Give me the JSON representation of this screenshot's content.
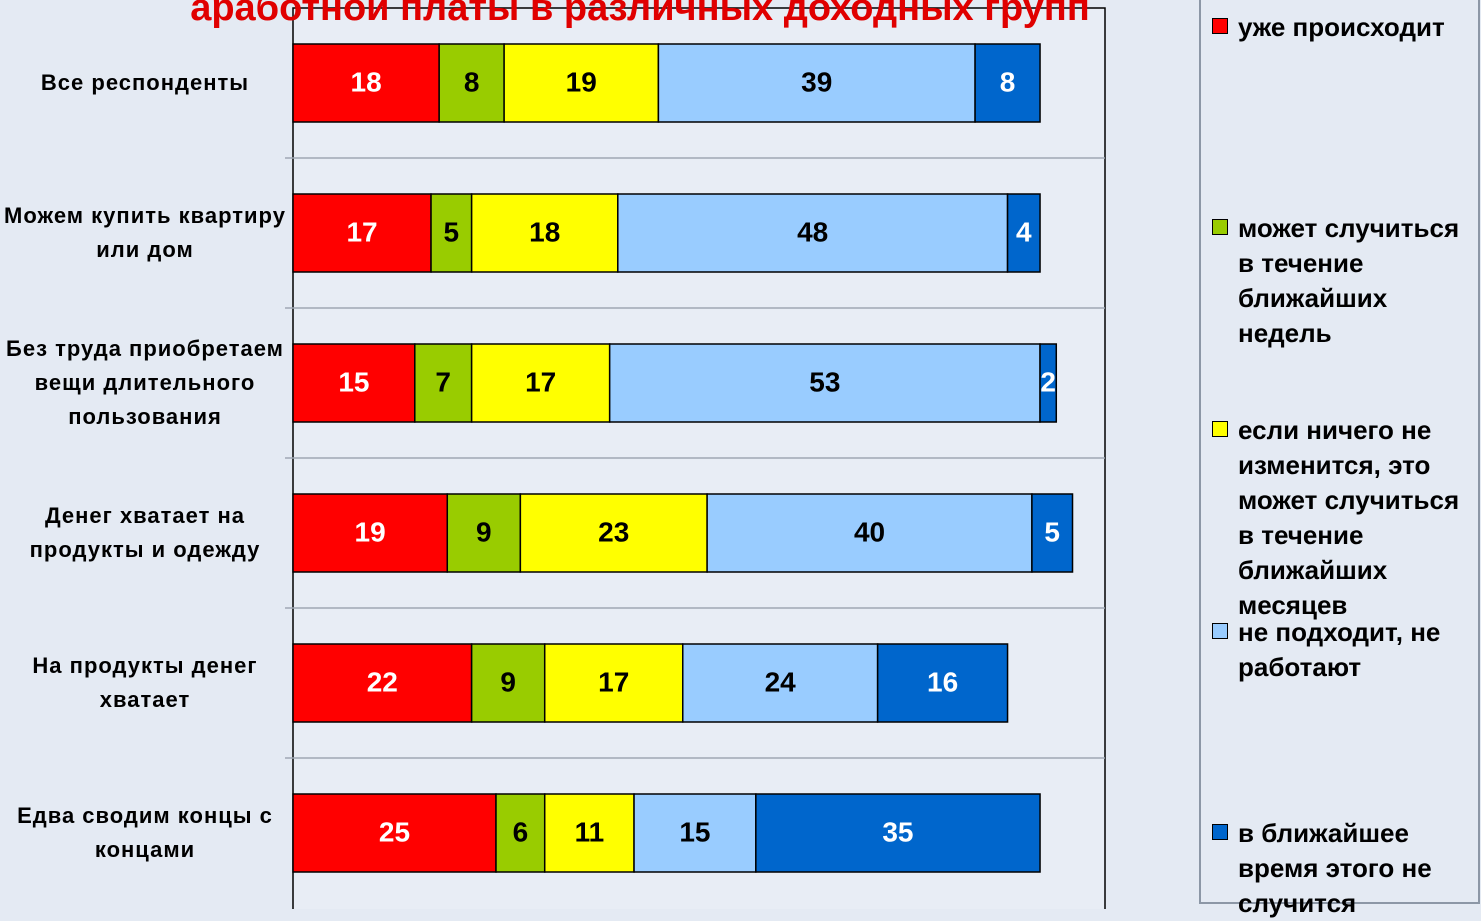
{
  "chart_data": {
    "type": "stacked-bar-horizontal",
    "title": "аработной платы в различных доходных групп",
    "categories": [
      "Все респонденты",
      "Можем купить квартиру или дом",
      "Без труда приобретаем вещи длительного пользования",
      "Денег хватает на продукты и одежду",
      "На продукты денег хватает",
      "Едва сводим концы с концами"
    ],
    "series": [
      {
        "name": "уже происходит",
        "color": "#ff0000",
        "values": [
          18,
          17,
          15,
          19,
          22,
          25
        ]
      },
      {
        "name": "может случиться в течение ближайших недель",
        "color": "#99cc00",
        "values": [
          8,
          5,
          7,
          9,
          9,
          6
        ]
      },
      {
        "name": "если ничего не изменится, это может случиться в течение ближайших месяцев",
        "color": "#ffff00",
        "values": [
          19,
          18,
          17,
          23,
          17,
          11
        ]
      },
      {
        "name": "не подходит, не работают",
        "color": "#99ccff",
        "values": [
          39,
          48,
          53,
          40,
          24,
          15
        ]
      },
      {
        "name": "в ближайшее время этого не случится",
        "color": "#0066cc",
        "values": [
          8,
          4,
          2,
          5,
          16,
          35
        ]
      }
    ],
    "xlim": [
      0,
      100
    ]
  }
}
